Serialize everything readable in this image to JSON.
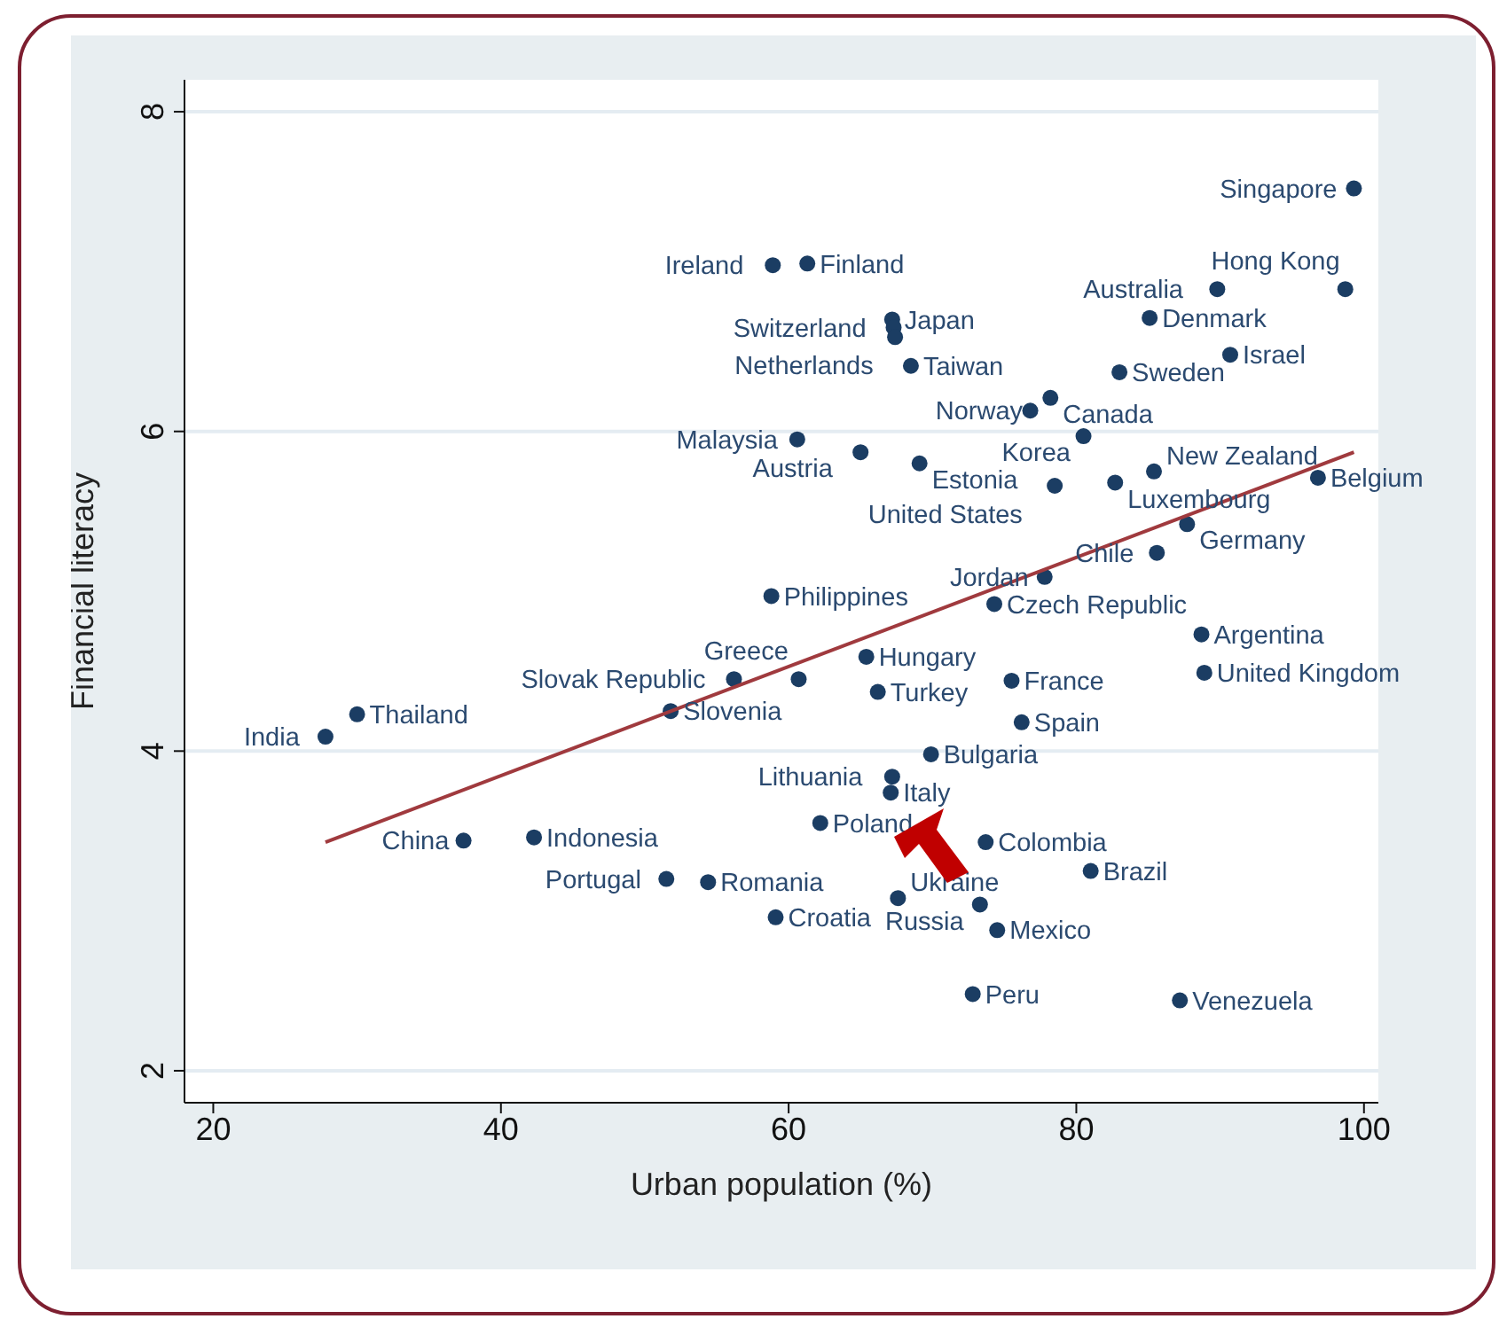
{
  "chart_data": {
    "type": "scatter",
    "xlabel": "Urban population (%)",
    "ylabel": "Financial literacy",
    "xlim": [
      18,
      101
    ],
    "ylim": [
      1.8,
      8.2
    ],
    "xticks": [
      20,
      40,
      60,
      80,
      100
    ],
    "yticks": [
      2,
      4,
      6,
      8
    ],
    "grid": "y",
    "legend": false,
    "series": [
      {
        "color": "#1b3d63",
        "marker": "circle",
        "x": [
          99.3,
          58.9,
          61.3,
          89.8,
          98.7,
          67.2,
          67.3,
          67.4,
          85.1,
          90.7,
          68.5,
          83.0,
          78.2,
          76.8,
          80.5,
          60.6,
          65.0,
          69.1,
          78.5,
          82.7,
          85.4,
          96.8,
          87.7,
          85.6,
          77.8,
          58.8,
          74.3,
          88.7,
          88.9,
          65.4,
          56.2,
          60.7,
          66.2,
          75.5,
          76.2,
          51.8,
          30.0,
          27.8,
          69.9,
          67.2,
          67.1,
          62.2,
          37.4,
          42.3,
          73.7,
          81.0,
          51.5,
          54.4,
          59.1,
          67.6,
          73.3,
          74.5,
          72.8,
          87.2
        ],
        "values": [
          7.52,
          7.04,
          7.05,
          6.89,
          6.89,
          6.7,
          6.65,
          6.59,
          6.71,
          6.48,
          6.41,
          6.37,
          6.21,
          6.13,
          5.97,
          5.95,
          5.87,
          5.8,
          5.66,
          5.68,
          5.75,
          5.71,
          5.42,
          5.24,
          5.09,
          4.97,
          4.92,
          4.73,
          4.49,
          4.59,
          4.45,
          4.45,
          4.37,
          4.44,
          4.18,
          4.25,
          4.23,
          4.09,
          3.98,
          3.84,
          3.74,
          3.55,
          3.44,
          3.46,
          3.43,
          3.25,
          3.2,
          3.18,
          2.96,
          3.08,
          3.04,
          2.88,
          2.48,
          2.44
        ]
      },
      {
        "type": "line",
        "color": "#a03a3e",
        "marker": "none",
        "line_style": "solid",
        "x": [
          27.8,
          99.3
        ],
        "values": [
          3.43,
          5.87
        ]
      }
    ],
    "annotations": [
      {
        "text": "Singapore",
        "x": 99.3,
        "y": 7.52
      },
      {
        "text": "Ireland",
        "x": 58.9,
        "y": 7.04
      },
      {
        "text": "Finland",
        "x": 61.3,
        "y": 7.05
      },
      {
        "text": "Australia",
        "x": 89.8,
        "y": 6.89
      },
      {
        "text": "Hong Kong",
        "x": 98.7,
        "y": 6.89
      },
      {
        "text": "Japan",
        "x": 67.2,
        "y": 6.7
      },
      {
        "text": "Switzerland",
        "x": 67.3,
        "y": 6.65
      },
      {
        "text": "Netherlands",
        "x": 67.4,
        "y": 6.59
      },
      {
        "text": "Denmark",
        "x": 85.1,
        "y": 6.71
      },
      {
        "text": "Israel",
        "x": 90.7,
        "y": 6.48
      },
      {
        "text": "Taiwan",
        "x": 68.5,
        "y": 6.41
      },
      {
        "text": "Sweden",
        "x": 83.0,
        "y": 6.37
      },
      {
        "text": "Canada",
        "x": 78.2,
        "y": 6.21
      },
      {
        "text": "Norway",
        "x": 76.8,
        "y": 6.13
      },
      {
        "text": "Korea",
        "x": 80.5,
        "y": 5.97
      },
      {
        "text": "Malaysia",
        "x": 60.6,
        "y": 5.95
      },
      {
        "text": "Austria",
        "x": 65.0,
        "y": 5.87
      },
      {
        "text": "Estonia",
        "x": 69.1,
        "y": 5.8
      },
      {
        "text": "United States",
        "x": 78.5,
        "y": 5.66
      },
      {
        "text": "Luxembourg",
        "x": 82.7,
        "y": 5.68
      },
      {
        "text": "New Zealand",
        "x": 85.4,
        "y": 5.75
      },
      {
        "text": "Belgium",
        "x": 96.8,
        "y": 5.71
      },
      {
        "text": "Germany",
        "x": 87.7,
        "y": 5.42
      },
      {
        "text": "Chile",
        "x": 85.6,
        "y": 5.24
      },
      {
        "text": "Jordan",
        "x": 77.8,
        "y": 5.09
      },
      {
        "text": "Philippines",
        "x": 58.8,
        "y": 4.97
      },
      {
        "text": "Czech Republic",
        "x": 74.3,
        "y": 4.92
      },
      {
        "text": "Argentina",
        "x": 88.7,
        "y": 4.73
      },
      {
        "text": "United Kingdom",
        "x": 88.9,
        "y": 4.49
      },
      {
        "text": "Hungary",
        "x": 65.4,
        "y": 4.59
      },
      {
        "text": "Slovak Republic",
        "x": 56.2,
        "y": 4.45
      },
      {
        "text": "Greece",
        "x": 60.7,
        "y": 4.45
      },
      {
        "text": "Turkey",
        "x": 66.2,
        "y": 4.37
      },
      {
        "text": "France",
        "x": 75.5,
        "y": 4.44
      },
      {
        "text": "Spain",
        "x": 76.2,
        "y": 4.18
      },
      {
        "text": "Slovenia",
        "x": 51.8,
        "y": 4.25
      },
      {
        "text": "Thailand",
        "x": 30.0,
        "y": 4.23
      },
      {
        "text": "India",
        "x": 27.8,
        "y": 4.09
      },
      {
        "text": "Bulgaria",
        "x": 69.9,
        "y": 3.98
      },
      {
        "text": "Lithuania",
        "x": 67.2,
        "y": 3.84
      },
      {
        "text": "Italy",
        "x": 67.1,
        "y": 3.74
      },
      {
        "text": "Poland",
        "x": 62.2,
        "y": 3.55
      },
      {
        "text": "China",
        "x": 37.4,
        "y": 3.44
      },
      {
        "text": "Indonesia",
        "x": 42.3,
        "y": 3.46
      },
      {
        "text": "Colombia",
        "x": 73.7,
        "y": 3.43
      },
      {
        "text": "Brazil",
        "x": 81.0,
        "y": 3.25
      },
      {
        "text": "Portugal",
        "x": 51.5,
        "y": 3.2
      },
      {
        "text": "Romania",
        "x": 54.4,
        "y": 3.18
      },
      {
        "text": "Croatia",
        "x": 59.1,
        "y": 2.96
      },
      {
        "text": "Ukraine",
        "x": 67.6,
        "y": 3.08
      },
      {
        "text": "Russia",
        "x": 73.3,
        "y": 3.04
      },
      {
        "text": "Mexico",
        "x": 74.5,
        "y": 2.88
      },
      {
        "text": "Peru",
        "x": 72.8,
        "y": 2.48
      },
      {
        "text": "Venezuela",
        "x": 87.2,
        "y": 2.44
      }
    ]
  }
}
